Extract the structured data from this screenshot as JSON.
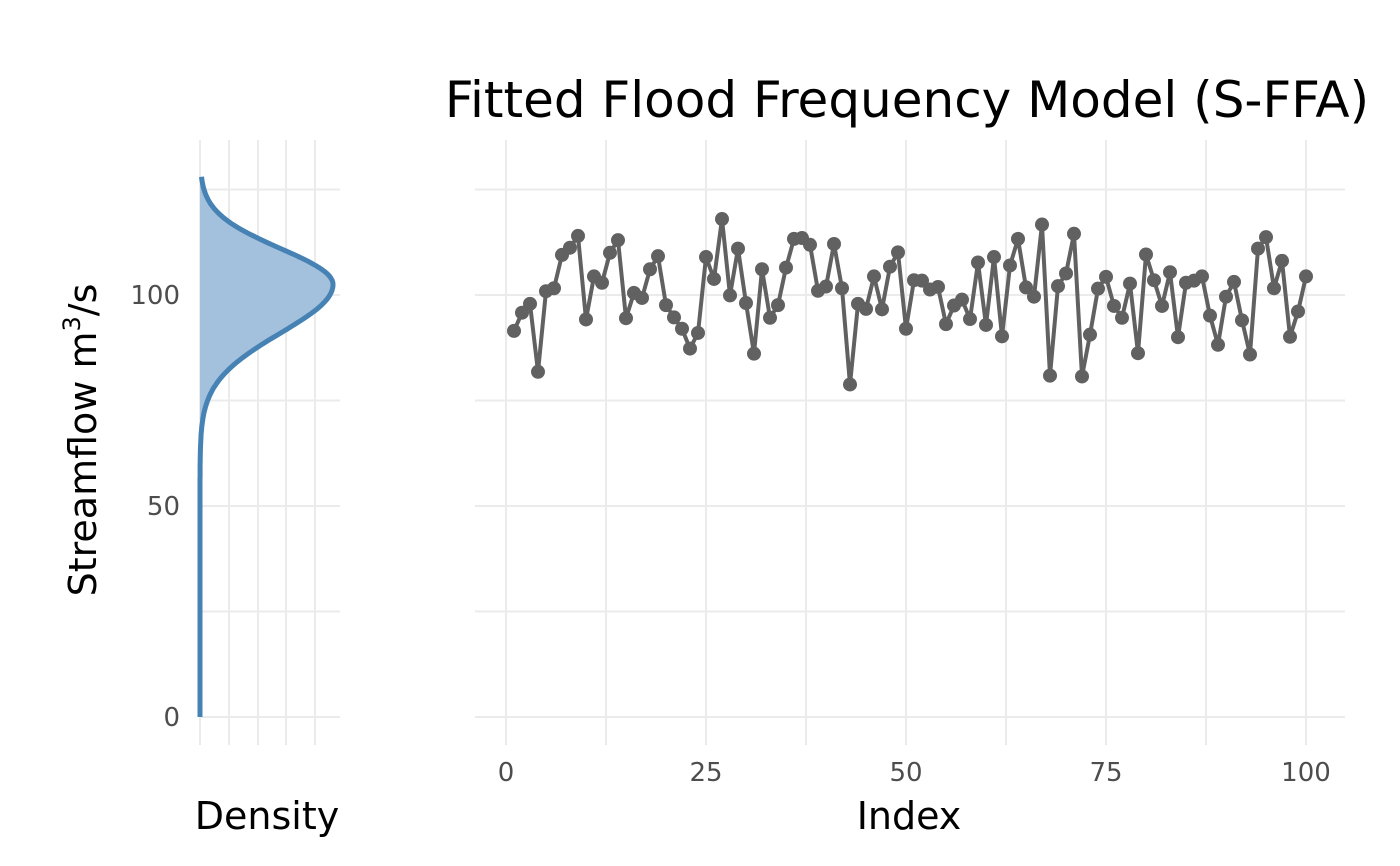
{
  "chart_data": [
    {
      "type": "area",
      "description": "Marginal density of fitted flood frequency model (vertical orientation)",
      "xlabel": "Density",
      "ylabel": "Streamflow m³/s",
      "ylabel_text": "Streamflow m",
      "ylabel_sup": "3",
      "ylabel_tail": "/s",
      "ylim": [
        0,
        130
      ],
      "y_ticks": [
        0,
        50,
        100
      ],
      "distribution": {
        "mode": 102.5,
        "scale_upper": 8.5,
        "scale_lower": 11.5,
        "lower_tail_end": 70,
        "upper_tail_end": 128
      },
      "fill_color": "#a3c0dc",
      "line_color": "#4682b4",
      "grid": true
    },
    {
      "type": "line",
      "title": "Fitted Flood Frequency Model (S-FFA)",
      "xlabel": "Index",
      "ylabel": "",
      "xlim": [
        1,
        100
      ],
      "ylim": [
        0,
        130
      ],
      "x_ticks": [
        0,
        25,
        50,
        75,
        100
      ],
      "y_ticks": [
        0,
        50,
        100
      ],
      "line_color": "#616161",
      "grid": true,
      "x": [
        1,
        2,
        3,
        4,
        5,
        6,
        7,
        8,
        9,
        10,
        11,
        12,
        13,
        14,
        15,
        16,
        17,
        18,
        19,
        20,
        21,
        22,
        23,
        24,
        25,
        26,
        27,
        28,
        29,
        30,
        31,
        32,
        33,
        34,
        35,
        36,
        37,
        38,
        39,
        40,
        41,
        42,
        43,
        44,
        45,
        46,
        47,
        48,
        49,
        50,
        51,
        52,
        53,
        54,
        55,
        56,
        57,
        58,
        59,
        60,
        61,
        62,
        63,
        64,
        65,
        66,
        67,
        68,
        69,
        70,
        71,
        72,
        73,
        74,
        75,
        76,
        77,
        78,
        79,
        80,
        81,
        82,
        83,
        84,
        85,
        86,
        87,
        88,
        89,
        90,
        91,
        92,
        93,
        94,
        95,
        96,
        97,
        98,
        99,
        100
      ],
      "y": [
        91.5,
        95.8,
        97.9,
        81.8,
        100.9,
        101.6,
        109.5,
        111.2,
        114.0,
        94.2,
        104.4,
        102.9,
        110.0,
        113.0,
        94.5,
        100.5,
        99.3,
        106.1,
        109.2,
        97.6,
        94.7,
        92.0,
        87.3,
        91.0,
        109.0,
        103.8,
        118.0,
        99.9,
        111.0,
        98.1,
        86.1,
        106.1,
        94.6,
        97.6,
        106.5,
        113.3,
        113.5,
        111.9,
        101.0,
        102.0,
        112.1,
        101.6,
        78.8,
        97.9,
        96.7,
        104.4,
        96.6,
        106.7,
        110.1,
        92.0,
        103.5,
        103.4,
        101.3,
        101.9,
        93.1,
        97.5,
        98.9,
        94.3,
        107.7,
        92.9,
        109.0,
        90.2,
        107.0,
        113.3,
        101.8,
        99.6,
        116.7,
        80.9,
        102.1,
        105.1,
        114.5,
        80.7,
        90.6,
        101.5,
        104.3,
        97.4,
        94.6,
        102.7,
        86.2,
        109.6,
        103.5,
        97.4,
        105.4,
        90.0,
        102.9,
        103.4,
        104.4,
        95.1,
        88.2,
        99.6,
        103.1,
        94.0,
        85.9,
        111.0,
        113.7,
        101.6,
        108.1,
        90.1,
        96.1,
        104.4
      ]
    }
  ]
}
